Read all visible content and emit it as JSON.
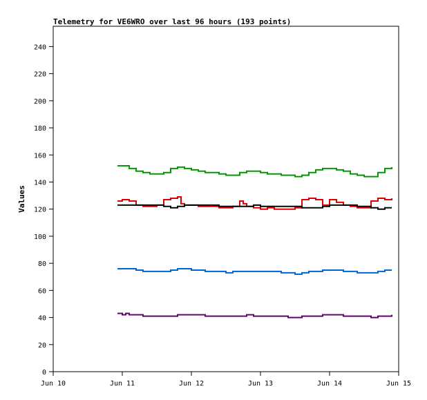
{
  "chart_data": {
    "type": "line",
    "title": "Telemetry for VE6WRO over last 96 hours (193 points)",
    "xlabel": "",
    "ylabel": "Values",
    "xlim": [
      "Jun 10",
      "Jun 15"
    ],
    "ylim": [
      0,
      255
    ],
    "x_ticks": [
      "Jun 10",
      "Jun 11",
      "Jun 12",
      "Jun 13",
      "Jun 14",
      "Jun 15"
    ],
    "y_ticks": [
      0,
      20,
      40,
      60,
      80,
      100,
      120,
      140,
      160,
      180,
      200,
      220,
      240
    ],
    "grid": false,
    "legend": "none",
    "series": [
      {
        "color": "#009900",
        "x": [
          10.93,
          11.0,
          11.1,
          11.2,
          11.3,
          11.4,
          11.5,
          11.6,
          11.7,
          11.8,
          11.9,
          12.0,
          12.1,
          12.2,
          12.3,
          12.4,
          12.5,
          12.6,
          12.7,
          12.8,
          12.9,
          13.0,
          13.1,
          13.2,
          13.3,
          13.4,
          13.5,
          13.6,
          13.7,
          13.8,
          13.9,
          14.0,
          14.1,
          14.2,
          14.3,
          14.4,
          14.5,
          14.6,
          14.7,
          14.8,
          14.9
        ],
        "y": [
          152,
          152,
          150,
          148,
          147,
          146,
          146,
          147,
          150,
          151,
          150,
          149,
          148,
          147,
          147,
          146,
          145,
          145,
          147,
          148,
          148,
          147,
          146,
          146,
          145,
          145,
          144,
          145,
          147,
          149,
          150,
          150,
          149,
          148,
          146,
          145,
          144,
          144,
          147,
          150,
          151
        ]
      },
      {
        "color": "#dd0000",
        "x": [
          10.93,
          11.0,
          11.1,
          11.2,
          11.3,
          11.4,
          11.5,
          11.6,
          11.7,
          11.8,
          11.85,
          11.9,
          12.0,
          12.1,
          12.2,
          12.3,
          12.4,
          12.5,
          12.6,
          12.7,
          12.75,
          12.8,
          12.9,
          13.0,
          13.1,
          13.2,
          13.3,
          13.4,
          13.5,
          13.6,
          13.7,
          13.8,
          13.9,
          14.0,
          14.1,
          14.2,
          14.3,
          14.4,
          14.5,
          14.6,
          14.7,
          14.8,
          14.9
        ],
        "y": [
          126,
          127,
          126,
          123,
          122,
          122,
          123,
          127,
          128,
          129,
          124,
          123,
          123,
          122,
          122,
          122,
          121,
          121,
          122,
          126,
          124,
          122,
          121,
          120,
          121,
          120,
          120,
          120,
          121,
          127,
          128,
          127,
          123,
          127,
          125,
          123,
          122,
          121,
          121,
          126,
          128,
          127,
          128
        ]
      },
      {
        "color": "#000000",
        "x": [
          10.93,
          11.0,
          11.1,
          11.2,
          11.3,
          11.4,
          11.5,
          11.6,
          11.7,
          11.8,
          11.9,
          12.0,
          12.1,
          12.2,
          12.3,
          12.4,
          12.5,
          12.6,
          12.7,
          12.8,
          12.9,
          13.0,
          13.1,
          13.2,
          13.3,
          13.4,
          13.5,
          13.6,
          13.7,
          13.8,
          13.9,
          14.0,
          14.1,
          14.2,
          14.3,
          14.4,
          14.5,
          14.6,
          14.7,
          14.8,
          14.9
        ],
        "y": [
          123,
          123,
          123,
          123,
          123,
          123,
          123,
          122,
          121,
          122,
          123,
          123,
          123,
          123,
          123,
          122,
          122,
          122,
          122,
          122,
          123,
          122,
          122,
          122,
          122,
          122,
          122,
          121,
          121,
          121,
          122,
          123,
          123,
          123,
          123,
          122,
          122,
          121,
          120,
          121,
          121
        ]
      },
      {
        "color": "#0066cc",
        "x": [
          10.93,
          11.0,
          11.1,
          11.2,
          11.3,
          11.4,
          11.5,
          11.6,
          11.7,
          11.8,
          11.9,
          12.0,
          12.1,
          12.2,
          12.3,
          12.4,
          12.5,
          12.6,
          12.7,
          12.8,
          12.9,
          13.0,
          13.1,
          13.2,
          13.3,
          13.4,
          13.5,
          13.6,
          13.7,
          13.8,
          13.9,
          14.0,
          14.1,
          14.2,
          14.3,
          14.4,
          14.5,
          14.6,
          14.7,
          14.8,
          14.9
        ],
        "y": [
          76,
          76,
          76,
          75,
          74,
          74,
          74,
          74,
          75,
          76,
          76,
          75,
          75,
          74,
          74,
          74,
          73,
          74,
          74,
          74,
          74,
          74,
          74,
          74,
          73,
          73,
          72,
          73,
          74,
          74,
          75,
          75,
          75,
          74,
          74,
          73,
          73,
          73,
          74,
          75,
          75
        ]
      },
      {
        "color": "#660077",
        "x": [
          10.93,
          11.0,
          11.05,
          11.1,
          11.2,
          11.3,
          11.4,
          11.5,
          11.6,
          11.7,
          11.8,
          11.9,
          12.0,
          12.1,
          12.2,
          12.3,
          12.4,
          12.5,
          12.6,
          12.7,
          12.8,
          12.9,
          13.0,
          13.1,
          13.2,
          13.3,
          13.4,
          13.5,
          13.6,
          13.7,
          13.8,
          13.9,
          14.0,
          14.1,
          14.2,
          14.3,
          14.4,
          14.5,
          14.6,
          14.7,
          14.8,
          14.9
        ],
        "y": [
          43,
          42,
          43,
          42,
          42,
          41,
          41,
          41,
          41,
          41,
          42,
          42,
          42,
          42,
          41,
          41,
          41,
          41,
          41,
          41,
          42,
          41,
          41,
          41,
          41,
          41,
          40,
          40,
          41,
          41,
          41,
          42,
          42,
          42,
          41,
          41,
          41,
          41,
          40,
          41,
          41,
          42
        ]
      }
    ]
  }
}
